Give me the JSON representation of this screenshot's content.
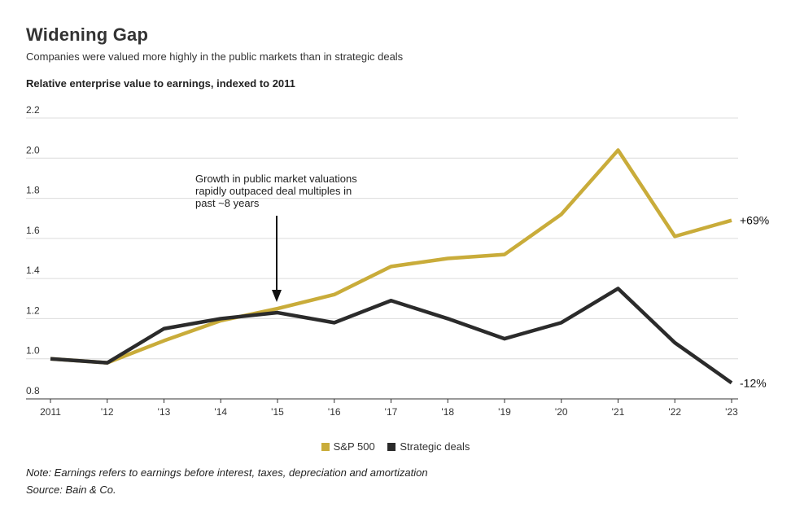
{
  "header": {
    "title": "Widening Gap",
    "subtitle": "Companies were valued more highly in the public markets than in strategic deals",
    "y_title": "Relative enterprise value to earnings, indexed to 2011"
  },
  "chart_data": {
    "type": "line",
    "title": "Widening Gap",
    "subtitle": "Companies were valued more highly in the public markets than in strategic deals",
    "ylabel": "Relative enterprise value to earnings, indexed to 2011",
    "xlabel": "",
    "categories": [
      "2011",
      "'12",
      "'13",
      "'14",
      "'15",
      "'16",
      "'17",
      "'18",
      "'19",
      "'20",
      "'21",
      "'22",
      "'23"
    ],
    "yticks": [
      "0.8",
      "1.0",
      "1.2",
      "1.4",
      "1.6",
      "1.8",
      "2.0",
      "2.2"
    ],
    "ylim": [
      0.8,
      2.2
    ],
    "grid": true,
    "series": [
      {
        "name": "S&P 500",
        "color": "#c9ac3a",
        "values": [
          1.0,
          0.98,
          1.09,
          1.19,
          1.25,
          1.32,
          1.46,
          1.5,
          1.52,
          1.72,
          2.04,
          1.61,
          1.69
        ],
        "end_label": "+69%"
      },
      {
        "name": "Strategic deals",
        "color": "#2b2b2b",
        "values": [
          1.0,
          0.98,
          1.15,
          1.2,
          1.23,
          1.18,
          1.29,
          1.2,
          1.1,
          1.18,
          1.35,
          1.08,
          0.88
        ],
        "end_label": "-12%"
      }
    ],
    "annotation": {
      "lines": [
        "Growth in public market valuations",
        "rapidly outpaced deal multiples in",
        "past ~8 years"
      ],
      "points_to": "'15"
    },
    "legend_position": "bottom-center"
  },
  "footer": {
    "note": "Note: Earnings refers to earnings before interest, taxes, depreciation and amortization",
    "source": "Source: Bain & Co."
  }
}
